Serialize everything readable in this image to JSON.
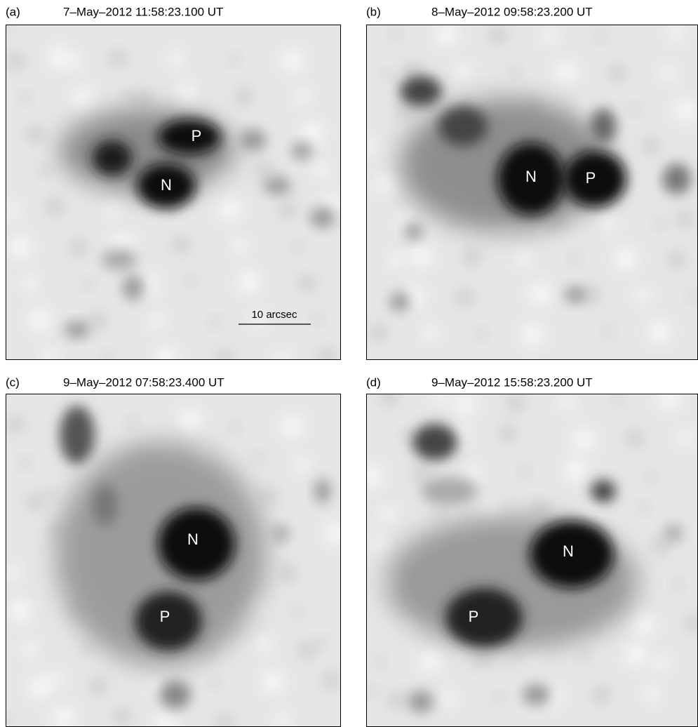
{
  "panels": [
    {
      "label": "(a)",
      "timestamp": "7–May–2012 11:58:23.100 UT",
      "markers": [
        "P",
        "N"
      ],
      "scale_bar": "10 arcsec"
    },
    {
      "label": "(b)",
      "timestamp": "8–May–2012 09:58:23.200 UT",
      "markers": [
        "N",
        "P"
      ]
    },
    {
      "label": "(c)",
      "timestamp": "9–May–2012 07:58:23.400 UT",
      "markers": [
        "N",
        "P"
      ]
    },
    {
      "label": "(d)",
      "timestamp": "9–May–2012 15:58:23.200 UT",
      "markers": [
        "N",
        "P"
      ]
    }
  ]
}
